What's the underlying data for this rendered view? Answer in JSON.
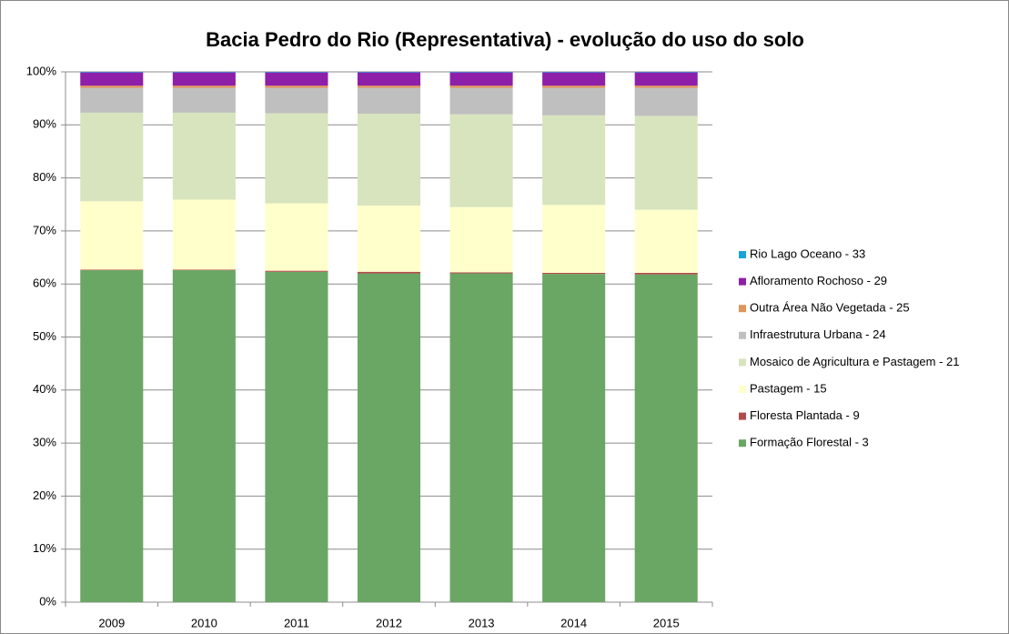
{
  "chart_data": {
    "type": "stacked_bar",
    "title": "Bacia Pedro do Rio (Representativa) - evolução do uso do solo",
    "categories": [
      "2009",
      "2010",
      "2011",
      "2012",
      "2013",
      "2014",
      "2015"
    ],
    "series": [
      {
        "name": "Formação Florestal -  3",
        "color": "#6aa664",
        "values": [
          62.6,
          62.6,
          62.3,
          62.0,
          62.0,
          61.9,
          61.8
        ]
      },
      {
        "name": "Floresta Plantada - 9",
        "color": "#b34a4a",
        "values": [
          0.1,
          0.1,
          0.2,
          0.3,
          0.2,
          0.2,
          0.3
        ]
      },
      {
        "name": "Pastagem - 15",
        "color": "#ffffcc",
        "values": [
          12.9,
          13.2,
          12.7,
          12.5,
          12.3,
          12.8,
          11.9
        ]
      },
      {
        "name": "Mosaico de Agricultura e Pastagem - 21",
        "color": "#d7e4bd",
        "values": [
          16.7,
          16.4,
          17.0,
          17.3,
          17.5,
          16.9,
          17.7
        ]
      },
      {
        "name": "Infraestrutura Urbana - 24",
        "color": "#bfbfbf",
        "values": [
          4.7,
          4.7,
          4.8,
          4.9,
          5.0,
          5.2,
          5.3
        ]
      },
      {
        "name": "Outra Área Não Vegetada - 25",
        "color": "#e0955a",
        "values": [
          0.4,
          0.4,
          0.4,
          0.4,
          0.4,
          0.4,
          0.4
        ]
      },
      {
        "name": "Afloramento Rochoso - 29",
        "color": "#8e1fa8",
        "values": [
          2.5,
          2.5,
          2.5,
          2.5,
          2.5,
          2.5,
          2.5
        ]
      },
      {
        "name": "Rio Lago Oceano - 33",
        "color": "#1aa3db",
        "values": [
          0.1,
          0.1,
          0.1,
          0.1,
          0.1,
          0.1,
          0.1
        ]
      }
    ],
    "ylim": [
      0,
      100
    ],
    "yticks": [
      {
        "value": 0,
        "label": "0%"
      },
      {
        "value": 10,
        "label": "10%"
      },
      {
        "value": 20,
        "label": "20%"
      },
      {
        "value": 30,
        "label": "30%"
      },
      {
        "value": 40,
        "label": "40%"
      },
      {
        "value": 50,
        "label": "50%"
      },
      {
        "value": 60,
        "label": "60%"
      },
      {
        "value": 70,
        "label": "70%"
      },
      {
        "value": 80,
        "label": "80%"
      },
      {
        "value": 90,
        "label": "90%"
      },
      {
        "value": 100,
        "label": "100%"
      }
    ],
    "grid": true,
    "legend": "right"
  }
}
